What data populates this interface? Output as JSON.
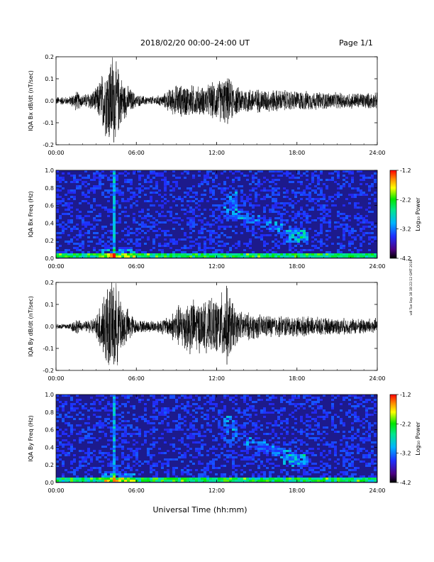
{
  "header": {
    "title": "2018/02/20  00:00–24:00 UT",
    "page": "Page 1/1"
  },
  "stamp": "vdl Tue Sep 18 18:22:12 GMT 2018",
  "xaxis_title": "Universal Time (hh:mm)",
  "chart_data": [
    {
      "type": "line",
      "ylabel": "IQA Bx dB/dt (nT/sec)",
      "xlim": [
        0,
        24
      ],
      "ylim": [
        -0.2,
        0.2
      ],
      "xticks": [
        "00:00",
        "06:00",
        "12:00",
        "18:00",
        "24:00"
      ],
      "yticks": [
        "-0.2",
        "-0.1",
        "0.0",
        "0.1",
        "0.2"
      ],
      "envelope": [
        {
          "x": 0,
          "amp": 0.02
        },
        {
          "x": 1,
          "amp": 0.02
        },
        {
          "x": 1.5,
          "amp": 0.05
        },
        {
          "x": 2,
          "amp": 0.03
        },
        {
          "x": 3,
          "amp": 0.06
        },
        {
          "x": 3.5,
          "amp": 0.15
        },
        {
          "x": 4.2,
          "amp": 0.25
        },
        {
          "x": 5,
          "amp": 0.1
        },
        {
          "x": 6,
          "amp": 0.03
        },
        {
          "x": 7,
          "amp": 0.02
        },
        {
          "x": 8,
          "amp": 0.03
        },
        {
          "x": 8.5,
          "amp": 0.06
        },
        {
          "x": 9,
          "amp": 0.08
        },
        {
          "x": 10,
          "amp": 0.08
        },
        {
          "x": 11,
          "amp": 0.07
        },
        {
          "x": 12,
          "amp": 0.1
        },
        {
          "x": 12.8,
          "amp": 0.12
        },
        {
          "x": 13.5,
          "amp": 0.07
        },
        {
          "x": 15,
          "amp": 0.06
        },
        {
          "x": 18,
          "amp": 0.05
        },
        {
          "x": 21,
          "amp": 0.04
        },
        {
          "x": 24,
          "amp": 0.04
        }
      ]
    },
    {
      "type": "heatmap",
      "ylabel": "IQA Bx Freq (Hz)",
      "xlim": [
        0,
        24
      ],
      "ylim": [
        0,
        1
      ],
      "xticks": [
        "00:00",
        "06:00",
        "12:00",
        "18:00",
        "24:00"
      ],
      "yticks": [
        "0.0",
        "0.2",
        "0.4",
        "0.6",
        "0.8",
        "1.0"
      ],
      "colorbar": {
        "label": "Log₁₀ Power",
        "range": [
          -4.2,
          -1.2
        ],
        "ticks": [
          "-1.2",
          "-2.2",
          "-3.2",
          "-4.2"
        ],
        "colormap": "rainbow"
      },
      "features": [
        {
          "x": 3.4,
          "amp": 1.0
        },
        {
          "x": 3.6,
          "amp": 1.0
        },
        {
          "x": 4.0,
          "amp": 1.0
        },
        {
          "x": 4.3,
          "amp": 1.0
        },
        {
          "x": 13.0,
          "amp": 0.65
        },
        {
          "x": 17.8,
          "amp": 0.25
        }
      ]
    },
    {
      "type": "line",
      "ylabel": "IQA By dB/dt (nT/sec)",
      "xlim": [
        0,
        24
      ],
      "ylim": [
        -0.2,
        0.2
      ],
      "xticks": [
        "00:00",
        "06:00",
        "12:00",
        "18:00",
        "24:00"
      ],
      "yticks": [
        "-0.2",
        "-0.1",
        "0.0",
        "0.1",
        "0.2"
      ],
      "envelope": [
        {
          "x": 0,
          "amp": 0.015
        },
        {
          "x": 1,
          "amp": 0.015
        },
        {
          "x": 1.5,
          "amp": 0.04
        },
        {
          "x": 2,
          "amp": 0.02
        },
        {
          "x": 3,
          "amp": 0.05
        },
        {
          "x": 3.5,
          "amp": 0.18
        },
        {
          "x": 4.3,
          "amp": 0.25
        },
        {
          "x": 5,
          "amp": 0.12
        },
        {
          "x": 6,
          "amp": 0.03
        },
        {
          "x": 7.5,
          "amp": 0.03
        },
        {
          "x": 8.5,
          "amp": 0.05
        },
        {
          "x": 9,
          "amp": 0.1
        },
        {
          "x": 10,
          "amp": 0.14
        },
        {
          "x": 11,
          "amp": 0.12
        },
        {
          "x": 12,
          "amp": 0.14
        },
        {
          "x": 12.8,
          "amp": 0.2
        },
        {
          "x": 13.5,
          "amp": 0.08
        },
        {
          "x": 15,
          "amp": 0.06
        },
        {
          "x": 18,
          "amp": 0.05
        },
        {
          "x": 21,
          "amp": 0.04
        },
        {
          "x": 24,
          "amp": 0.04
        }
      ]
    },
    {
      "type": "heatmap",
      "ylabel": "IQA By Freq (Hz)",
      "xlim": [
        0,
        24
      ],
      "ylim": [
        0,
        1
      ],
      "xticks": [
        "00:00",
        "06:00",
        "12:00",
        "18:00",
        "24:00"
      ],
      "yticks": [
        "0.0",
        "0.2",
        "0.4",
        "0.6",
        "0.8",
        "1.0"
      ],
      "colorbar": {
        "label": "Log₁₀ Power",
        "range": [
          -4.2,
          -1.2
        ],
        "ticks": [
          "-1.2",
          "-2.2",
          "-3.2",
          "-4.2"
        ],
        "colormap": "rainbow"
      },
      "features": [
        {
          "x": 3.4,
          "amp": 1.0
        },
        {
          "x": 3.6,
          "amp": 1.0
        },
        {
          "x": 4.0,
          "amp": 1.0
        },
        {
          "x": 4.3,
          "amp": 1.0
        },
        {
          "x": 13.0,
          "amp": 0.65
        },
        {
          "x": 17.8,
          "amp": 0.25
        }
      ]
    }
  ]
}
